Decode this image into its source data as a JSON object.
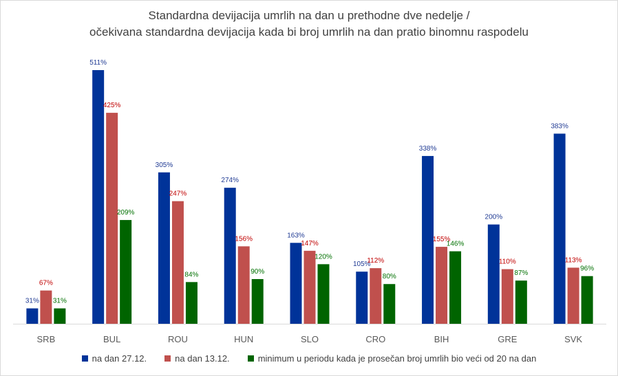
{
  "chart_data": {
    "type": "bar",
    "title_line1": "Standardna devijacija umrlih na dan u prethodne dve nedelje /",
    "title_line2": "očekivana standardna devijacija kada bi broj umrlih na dan pratio binomnu raspodelu",
    "categories": [
      "SRB",
      "BUL",
      "ROU",
      "HUN",
      "SLO",
      "CRO",
      "BIH",
      "GRE",
      "SVK"
    ],
    "series": [
      {
        "name": "na dan 27.12.",
        "color": "#003399",
        "label_color": "#1f3a93",
        "values": [
          31,
          511,
          305,
          274,
          163,
          105,
          338,
          200,
          383
        ]
      },
      {
        "name": "na dan 13.12.",
        "color": "#c0504d",
        "label_color": "#c00000",
        "values": [
          67,
          425,
          247,
          156,
          147,
          112,
          155,
          110,
          113
        ]
      },
      {
        "name": "minimum u periodu kada je prosečan broj umrlih bio veći od 20 na dan",
        "color": "#006400",
        "label_color": "#007000",
        "values": [
          31,
          209,
          84,
          90,
          120,
          80,
          146,
          87,
          96
        ]
      }
    ],
    "value_suffix": "%",
    "ylim": [
      0,
      511
    ],
    "grid": false,
    "legend_position": "bottom"
  }
}
